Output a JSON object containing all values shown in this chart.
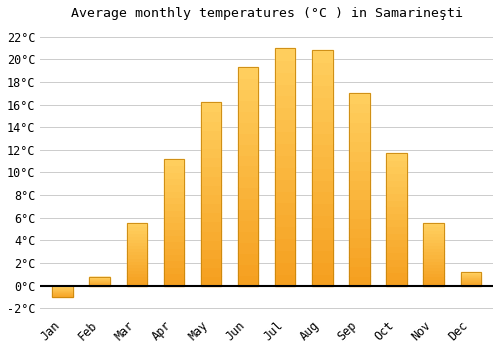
{
  "title": "Average monthly temperatures (°C ) in Samarineşti",
  "months": [
    "Jan",
    "Feb",
    "Mar",
    "Apr",
    "May",
    "Jun",
    "Jul",
    "Aug",
    "Sep",
    "Oct",
    "Nov",
    "Dec"
  ],
  "temperatures": [
    -1.0,
    0.8,
    5.5,
    11.2,
    16.2,
    19.3,
    21.0,
    20.8,
    17.0,
    11.7,
    5.5,
    1.2
  ],
  "bar_color_bottom": "#F5A623",
  "bar_color_top": "#FFD966",
  "bar_edge_color": "#C8850A",
  "ylim": [
    -2.5,
    23
  ],
  "yticks": [
    -2,
    0,
    2,
    4,
    6,
    8,
    10,
    12,
    14,
    16,
    18,
    20,
    22
  ],
  "background_color": "#FFFFFF",
  "grid_color": "#CCCCCC",
  "title_fontsize": 9.5,
  "bar_width": 0.55
}
